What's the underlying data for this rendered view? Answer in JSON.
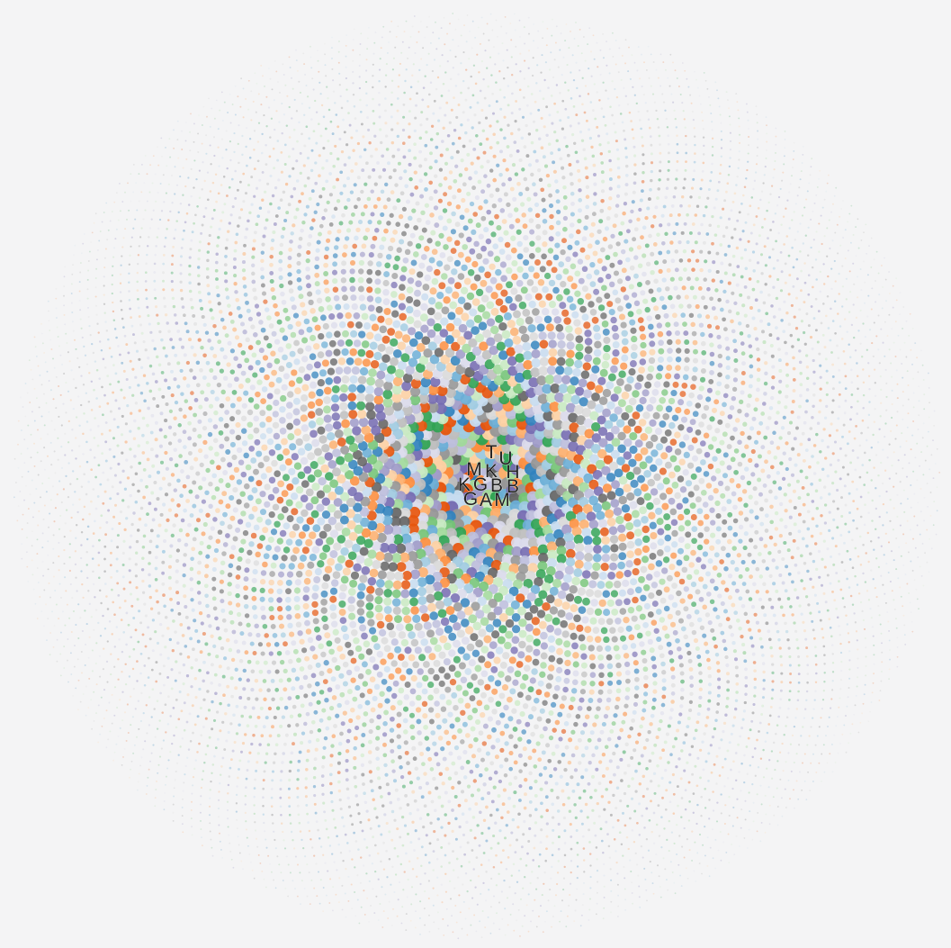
{
  "visualization": {
    "type": "phyllotaxis-spiral",
    "background": "#f4f4f5",
    "palette": [
      "#3182bd",
      "#6baed6",
      "#9ecae1",
      "#c6dbef",
      "#e6550d",
      "#fd8d3c",
      "#fdae6b",
      "#fdd0a2",
      "#31a354",
      "#74c476",
      "#a1d99b",
      "#c7e9c0",
      "#756bb1",
      "#9e9ac8",
      "#bcbddc",
      "#dadaeb",
      "#636363",
      "#969696",
      "#bdbdbd",
      "#d9d9d9"
    ],
    "center_labels": [
      {
        "text": "T",
        "color": "#31a354"
      },
      {
        "text": "U",
        "color": "#756bb1"
      },
      {
        "text": "M",
        "color": "#6baed6"
      },
      {
        "text": "K",
        "color": "#3182bd"
      },
      {
        "text": "H",
        "color": "#74c476"
      },
      {
        "text": "K",
        "color": "#e6550d"
      },
      {
        "text": "G",
        "color": "#3182bd"
      },
      {
        "text": "B",
        "color": "#6baed6"
      },
      {
        "text": "B",
        "color": "#31a354"
      },
      {
        "text": "G",
        "color": "#fd8d3c"
      },
      {
        "text": "A",
        "color": "#9ecae1"
      },
      {
        "text": "M",
        "color": "#fdae6b"
      }
    ]
  }
}
